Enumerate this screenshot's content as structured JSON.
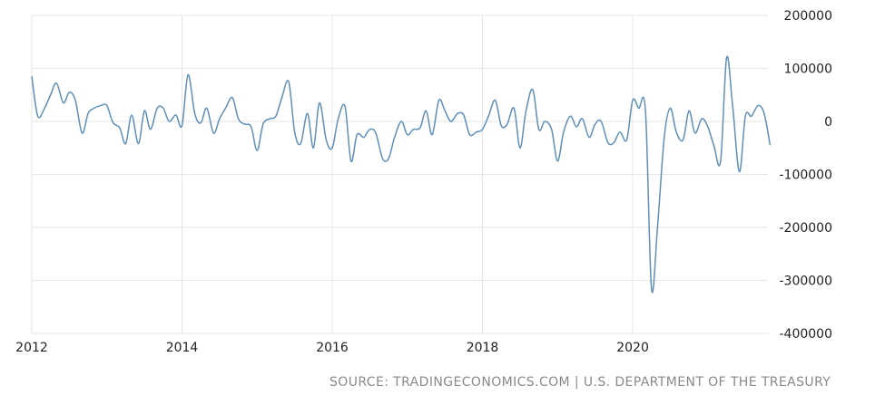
{
  "source": "SOURCE: TRADINGECONOMICS.COM | U.S. DEPARTMENT OF THE TREASURY",
  "colors": {
    "line": "#5e8fb8",
    "grid": "#e6e6e6",
    "text": "#222222",
    "source": "#8a8a8a"
  },
  "chart_data": {
    "type": "line",
    "title": "",
    "xlabel": "",
    "ylabel": "",
    "grid": true,
    "y_axis_side": "right",
    "xlim": [
      2012.0,
      2021.8
    ],
    "ylim": [
      -400000,
      200000
    ],
    "x_ticks": [
      2012,
      2014,
      2016,
      2018,
      2020
    ],
    "x_tick_labels": [
      "2012",
      "2014",
      "2016",
      "2018",
      "2020"
    ],
    "y_ticks": [
      200000,
      100000,
      0,
      -100000,
      -200000,
      -300000,
      -400000
    ],
    "y_tick_labels": [
      "200000",
      "100000",
      "0",
      "-100000",
      "-200000",
      "-300000",
      "-400000"
    ],
    "series": [
      {
        "color": "#5e8fb8",
        "points": [
          [
            2012.0,
            85000
          ],
          [
            2012.08,
            10000
          ],
          [
            2012.17,
            25000
          ],
          [
            2012.25,
            50000
          ],
          [
            2012.33,
            72000
          ],
          [
            2012.42,
            35000
          ],
          [
            2012.5,
            55000
          ],
          [
            2012.58,
            40000
          ],
          [
            2012.67,
            -22000
          ],
          [
            2012.75,
            15000
          ],
          [
            2012.83,
            25000
          ],
          [
            2012.92,
            30000
          ],
          [
            2013.0,
            30000
          ],
          [
            2013.08,
            -2000
          ],
          [
            2013.17,
            -12000
          ],
          [
            2013.25,
            -42000
          ],
          [
            2013.33,
            12000
          ],
          [
            2013.42,
            -42000
          ],
          [
            2013.5,
            20000
          ],
          [
            2013.58,
            -15000
          ],
          [
            2013.67,
            25000
          ],
          [
            2013.75,
            25000
          ],
          [
            2013.83,
            0
          ],
          [
            2013.92,
            12000
          ],
          [
            2014.0,
            -8000
          ],
          [
            2014.08,
            88000
          ],
          [
            2014.17,
            15000
          ],
          [
            2014.25,
            -3000
          ],
          [
            2014.33,
            25000
          ],
          [
            2014.42,
            -22000
          ],
          [
            2014.5,
            5000
          ],
          [
            2014.58,
            25000
          ],
          [
            2014.67,
            45000
          ],
          [
            2014.75,
            5000
          ],
          [
            2014.83,
            -5000
          ],
          [
            2014.92,
            -10000
          ],
          [
            2015.0,
            -55000
          ],
          [
            2015.08,
            -5000
          ],
          [
            2015.17,
            5000
          ],
          [
            2015.25,
            10000
          ],
          [
            2015.33,
            45000
          ],
          [
            2015.42,
            75000
          ],
          [
            2015.5,
            -20000
          ],
          [
            2015.58,
            -42000
          ],
          [
            2015.67,
            15000
          ],
          [
            2015.75,
            -50000
          ],
          [
            2015.83,
            35000
          ],
          [
            2015.92,
            -35000
          ],
          [
            2016.0,
            -50000
          ],
          [
            2016.08,
            5000
          ],
          [
            2016.17,
            28000
          ],
          [
            2016.25,
            -75000
          ],
          [
            2016.33,
            -25000
          ],
          [
            2016.42,
            -30000
          ],
          [
            2016.5,
            -15000
          ],
          [
            2016.58,
            -22000
          ],
          [
            2016.67,
            -70000
          ],
          [
            2016.75,
            -70000
          ],
          [
            2016.83,
            -30000
          ],
          [
            2016.92,
            0
          ],
          [
            2017.0,
            -25000
          ],
          [
            2017.08,
            -15000
          ],
          [
            2017.17,
            -12000
          ],
          [
            2017.25,
            20000
          ],
          [
            2017.33,
            -25000
          ],
          [
            2017.42,
            40000
          ],
          [
            2017.5,
            20000
          ],
          [
            2017.58,
            0
          ],
          [
            2017.67,
            15000
          ],
          [
            2017.75,
            12000
          ],
          [
            2017.83,
            -25000
          ],
          [
            2017.92,
            -20000
          ],
          [
            2018.0,
            -15000
          ],
          [
            2018.08,
            10000
          ],
          [
            2018.17,
            40000
          ],
          [
            2018.25,
            -8000
          ],
          [
            2018.33,
            -5000
          ],
          [
            2018.42,
            25000
          ],
          [
            2018.5,
            -50000
          ],
          [
            2018.58,
            20000
          ],
          [
            2018.67,
            60000
          ],
          [
            2018.75,
            -15000
          ],
          [
            2018.83,
            0
          ],
          [
            2018.92,
            -15000
          ],
          [
            2019.0,
            -75000
          ],
          [
            2019.08,
            -20000
          ],
          [
            2019.17,
            10000
          ],
          [
            2019.25,
            -10000
          ],
          [
            2019.33,
            5000
          ],
          [
            2019.42,
            -30000
          ],
          [
            2019.5,
            -5000
          ],
          [
            2019.58,
            0
          ],
          [
            2019.67,
            -40000
          ],
          [
            2019.75,
            -40000
          ],
          [
            2019.83,
            -20000
          ],
          [
            2019.92,
            -35000
          ],
          [
            2020.0,
            40000
          ],
          [
            2020.08,
            25000
          ],
          [
            2020.17,
            20000
          ],
          [
            2020.25,
            -315000
          ],
          [
            2020.33,
            -200000
          ],
          [
            2020.42,
            -30000
          ],
          [
            2020.5,
            25000
          ],
          [
            2020.58,
            -20000
          ],
          [
            2020.67,
            -35000
          ],
          [
            2020.75,
            20000
          ],
          [
            2020.83,
            -22000
          ],
          [
            2020.92,
            5000
          ],
          [
            2021.0,
            -10000
          ],
          [
            2021.08,
            -45000
          ],
          [
            2021.17,
            -75000
          ],
          [
            2021.25,
            120000
          ],
          [
            2021.33,
            30000
          ],
          [
            2021.42,
            -95000
          ],
          [
            2021.5,
            10000
          ],
          [
            2021.58,
            10000
          ],
          [
            2021.67,
            30000
          ],
          [
            2021.75,
            15000
          ],
          [
            2021.83,
            -45000
          ]
        ]
      }
    ]
  }
}
